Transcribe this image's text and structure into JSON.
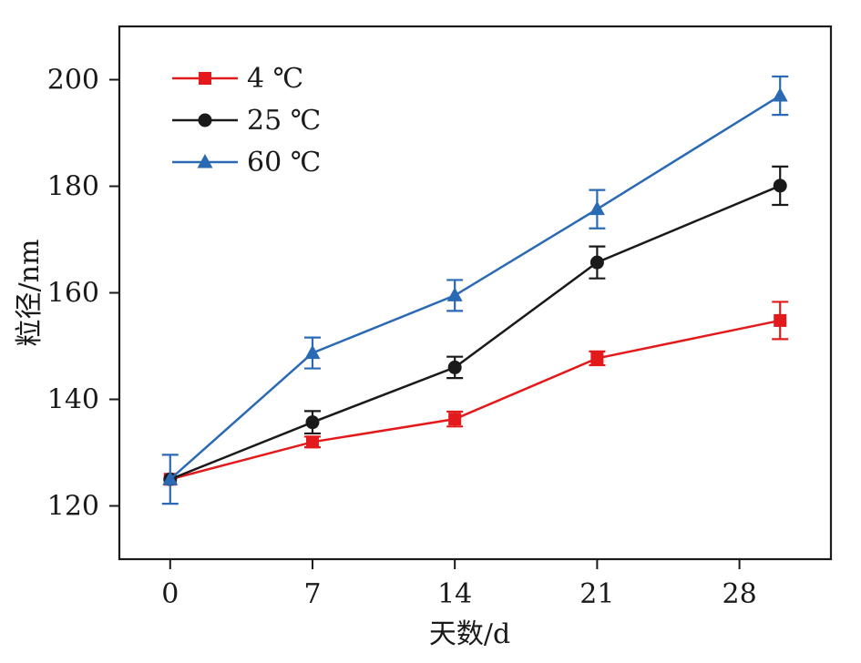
{
  "chart_data": {
    "type": "line",
    "title": "",
    "xlabel": "天数/d",
    "ylabel": "粒径/nm",
    "x_ticks": [
      0,
      7,
      14,
      21,
      28
    ],
    "y_ticks": [
      120,
      140,
      160,
      180,
      200
    ],
    "xlim": [
      -2.5,
      32.5
    ],
    "ylim": [
      110,
      210
    ],
    "grid": false,
    "legend_position": "top-left",
    "series": [
      {
        "name": "4 ℃",
        "color": "#e31a1c",
        "marker": "square",
        "x": [
          0,
          7,
          14,
          21,
          30
        ],
        "y": [
          125.0,
          132.0,
          136.3,
          147.7,
          154.8
        ],
        "err": [
          0.0,
          1.0,
          1.4,
          1.3,
          3.5
        ]
      },
      {
        "name": "25 ℃",
        "color": "#1a1a1a",
        "marker": "circle",
        "x": [
          0,
          7,
          14,
          21,
          30
        ],
        "y": [
          125.0,
          135.7,
          146.0,
          165.7,
          180.1
        ],
        "err": [
          0.0,
          2.1,
          2.0,
          3.0,
          3.6
        ]
      },
      {
        "name": "60 ℃",
        "color": "#2a6ab4",
        "marker": "triangle",
        "x": [
          0,
          7,
          14,
          21,
          30
        ],
        "y": [
          125.0,
          148.7,
          159.5,
          175.7,
          197.0
        ],
        "err": [
          4.6,
          2.9,
          2.9,
          3.6,
          3.6
        ]
      }
    ]
  }
}
